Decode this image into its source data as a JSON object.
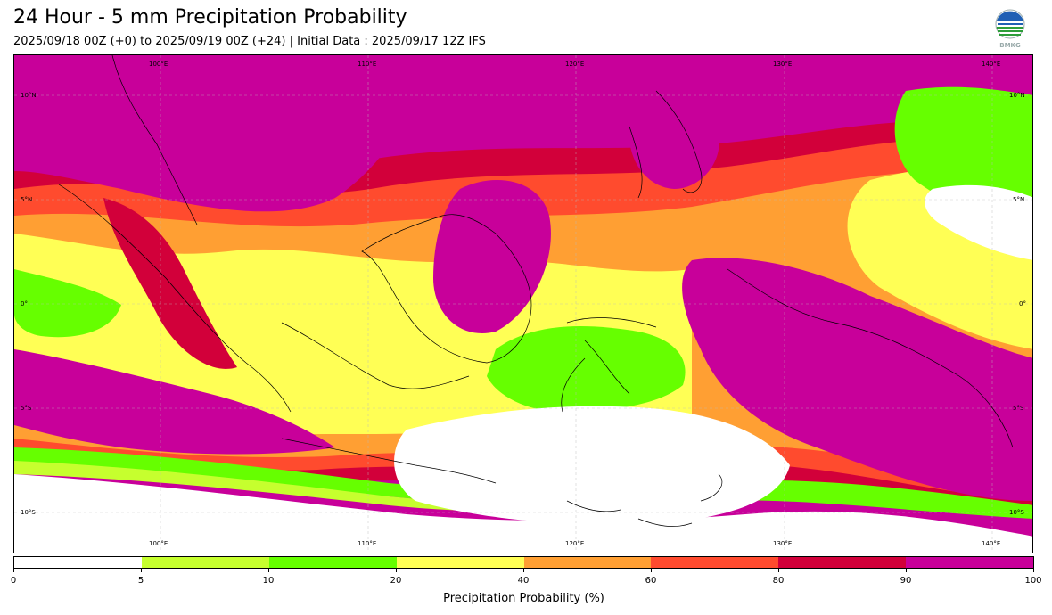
{
  "header": {
    "title": "24 Hour - 5 mm Precipitation Probability",
    "subtitle": "2025/09/18 00Z (+0) to 2025/09/19 00Z (+24) | Initial Data : 2025/09/17 12Z IFS"
  },
  "logo": {
    "icon": "bmkg-logo-icon",
    "text": "BMKG"
  },
  "map": {
    "lon_labels_top": [
      "100°E",
      "110°E",
      "120°E",
      "130°E",
      "140°E"
    ],
    "lon_labels_bottom": [
      "100°E",
      "110°E",
      "120°E",
      "130°E",
      "140°E"
    ],
    "lat_labels_left": [
      "10°N",
      "5°N",
      "0°",
      "5°S",
      "10°S"
    ],
    "lat_labels_right": [
      "10°N",
      "5°N",
      "0°",
      "5°S",
      "10°S"
    ],
    "extent": {
      "lon_min": 93,
      "lon_max": 142,
      "lat_min": -12,
      "lat_max": 12
    }
  },
  "colorbar": {
    "label": "Precipitation Probability (%)",
    "ticks": [
      "0",
      "5",
      "10",
      "20",
      "40",
      "60",
      "80",
      "90",
      "100"
    ],
    "colors": [
      "#ffffff",
      "#c6ff2e",
      "#66ff00",
      "#ffff55",
      "#ff9f33",
      "#ff4b2e",
      "#d2003a",
      "#c8009a"
    ]
  }
}
